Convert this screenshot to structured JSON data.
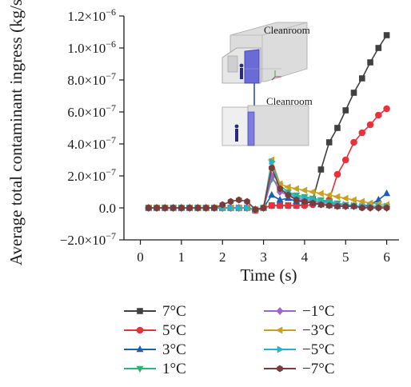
{
  "chart_data": {
    "type": "line",
    "title": "",
    "xlabel": "Time (s)",
    "ylabel": "Average total contaminant ingress (kg/s)",
    "xlim": [
      -0.4,
      6.3
    ],
    "ylim": [
      -2e-07,
      1.2e-06
    ],
    "x_ticks": [
      0,
      1,
      2,
      3,
      4,
      5,
      6
    ],
    "x_tick_labels": [
      "0",
      "1",
      "2",
      "3",
      "4",
      "5",
      "6"
    ],
    "y_ticks": [
      -2e-07,
      0,
      2e-07,
      4e-07,
      6e-07,
      8e-07,
      1e-06,
      1.2e-06
    ],
    "y_tick_labels": [
      {
        "mantissa": "−2.0",
        "exp": "−7"
      },
      {
        "mantissa": "0.0",
        "exp": ""
      },
      {
        "mantissa": "2.0",
        "exp": "−7"
      },
      {
        "mantissa": "4.0",
        "exp": "−7"
      },
      {
        "mantissa": "6.0",
        "exp": "−7"
      },
      {
        "mantissa": "8.0",
        "exp": "−7"
      },
      {
        "mantissa": "1.0",
        "exp": "−6"
      },
      {
        "mantissa": "1.2",
        "exp": "−6"
      }
    ],
    "times": [
      0.2,
      0.4,
      0.6,
      0.8,
      1.0,
      1.2,
      1.4,
      1.6,
      1.8,
      2.0,
      2.2,
      2.4,
      2.6,
      2.8,
      3.0,
      3.2,
      3.4,
      3.6,
      3.8,
      4.0,
      4.2,
      4.4,
      4.6,
      4.8,
      5.0,
      5.2,
      5.4,
      5.6,
      5.8,
      6.0
    ],
    "grid": false,
    "legend_position": "below plot, two columns",
    "inset_labels": [
      "Cleanroom",
      "Cleanroom"
    ],
    "series": [
      {
        "name": "7°C",
        "color": "#404040",
        "marker": "square",
        "values": [
          0.0,
          0.0,
          0.0,
          0.0,
          0.0,
          0.0,
          0.0,
          0.0,
          0.0,
          0.0,
          0.0,
          0.0,
          0.0,
          -1.5e-08,
          0.0,
          1.5e-08,
          1.5e-08,
          1.5e-08,
          1.5e-08,
          2e-08,
          5e-08,
          2.4e-07,
          4.1e-07,
          5e-07,
          6.1e-07,
          7.2e-07,
          8.1e-07,
          9.1e-07,
          1e-06,
          1.08e-06
        ]
      },
      {
        "name": "5°C",
        "color": "#e8313a",
        "marker": "circle",
        "values": [
          0.0,
          0.0,
          0.0,
          0.0,
          0.0,
          0.0,
          0.0,
          0.0,
          0.0,
          0.0,
          0.0,
          0.0,
          0.0,
          -1.5e-08,
          0.0,
          1.5e-08,
          1.5e-08,
          1.5e-08,
          1.5e-08,
          1.5e-08,
          2e-08,
          3e-08,
          5e-08,
          2.1e-07,
          3e-07,
          4.1e-07,
          4.7e-07,
          5.2e-07,
          5.8e-07,
          6.2e-07
        ]
      },
      {
        "name": "3°C",
        "color": "#1c5fb5",
        "marker": "triangle-up",
        "values": [
          0.0,
          0.0,
          0.0,
          0.0,
          0.0,
          0.0,
          0.0,
          0.0,
          0.0,
          0.0,
          0.0,
          0.0,
          0.0,
          -1e-08,
          0.0,
          8e-08,
          5e-08,
          6e-08,
          4e-08,
          4e-08,
          3e-08,
          2e-08,
          1.5e-08,
          1e-08,
          1e-08,
          1e-08,
          1e-08,
          2e-08,
          5e-08,
          9e-08
        ]
      },
      {
        "name": "1°C",
        "color": "#2bb673",
        "marker": "triangle-down",
        "values": [
          0.0,
          0.0,
          0.0,
          0.0,
          0.0,
          0.0,
          0.0,
          0.0,
          0.0,
          0.0,
          0.0,
          0.0,
          0.0,
          -1e-08,
          0.0,
          1.8e-07,
          1.4e-07,
          1e-07,
          8e-08,
          7e-08,
          6e-08,
          5e-08,
          4e-08,
          3e-08,
          2e-08,
          1.5e-08,
          1e-08,
          1e-08,
          1e-08,
          1e-08
        ]
      },
      {
        "name": "−1°C",
        "color": "#a064c8",
        "marker": "diamond",
        "values": [
          0.0,
          0.0,
          0.0,
          0.0,
          0.0,
          0.0,
          0.0,
          0.0,
          0.0,
          0.0,
          0.0,
          0.0,
          0.0,
          -1e-08,
          0.0,
          2e-07,
          1e-07,
          8e-08,
          6e-08,
          5e-08,
          4e-08,
          3e-08,
          2e-08,
          2e-08,
          1e-08,
          1e-08,
          1e-08,
          0.0,
          0.0,
          0.0
        ]
      },
      {
        "name": "−3°C",
        "color": "#c8a023",
        "marker": "triangle-left",
        "values": [
          0.0,
          0.0,
          0.0,
          0.0,
          0.0,
          0.0,
          0.0,
          0.0,
          0.0,
          0.0,
          0.0,
          0.0,
          0.0,
          -1e-08,
          0.0,
          3e-07,
          1.5e-07,
          1.3e-07,
          1.2e-07,
          1.1e-07,
          1e-07,
          9e-08,
          8e-08,
          7e-08,
          6e-08,
          5e-08,
          4e-08,
          3e-08,
          2.5e-08,
          2e-08
        ]
      },
      {
        "name": "−5°C",
        "color": "#23b4c8",
        "marker": "triangle-right",
        "values": [
          0.0,
          0.0,
          0.0,
          0.0,
          0.0,
          0.0,
          0.0,
          0.0,
          0.0,
          0.0,
          0.0,
          0.0,
          0.0,
          -1e-08,
          0.0,
          2.9e-07,
          1.2e-07,
          9e-08,
          7e-08,
          6e-08,
          5e-08,
          4e-08,
          3e-08,
          2.5e-08,
          2e-08,
          1.5e-08,
          1e-08,
          1e-08,
          1e-08,
          1e-08
        ]
      },
      {
        "name": "−7°C",
        "color": "#7a3b3b",
        "marker": "hexagon",
        "values": [
          0.0,
          0.0,
          0.0,
          0.0,
          0.0,
          0.0,
          0.0,
          0.0,
          0.0,
          2e-08,
          4e-08,
          5e-08,
          4e-08,
          -1e-08,
          0.0,
          2.5e-07,
          1.2e-07,
          8e-08,
          5e-08,
          4e-08,
          3e-08,
          2e-08,
          1.5e-08,
          1e-08,
          1e-08,
          1e-08,
          0.0,
          0.0,
          0.0,
          0.0
        ]
      }
    ]
  }
}
